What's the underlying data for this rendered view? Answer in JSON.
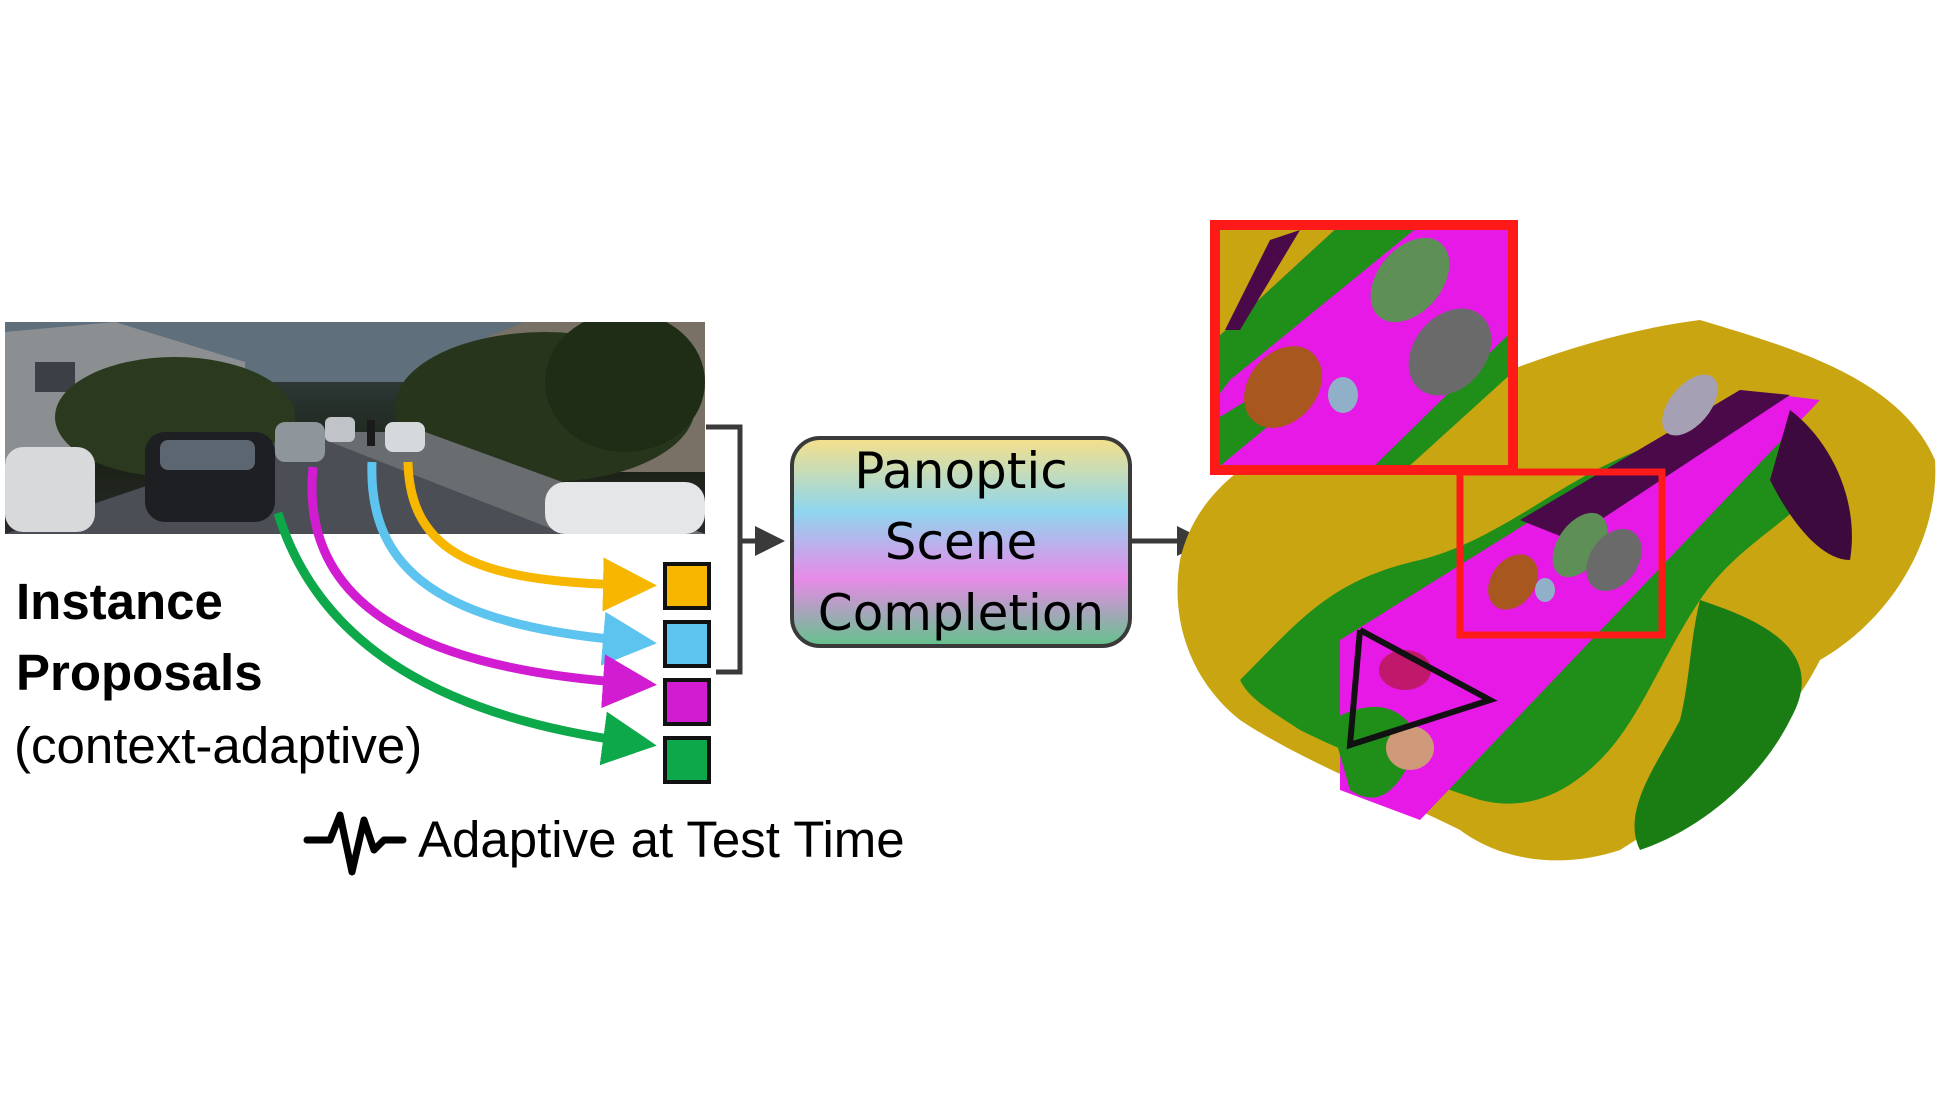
{
  "left_panel": {
    "title_line_1": "Instance",
    "title_line_2": "Proposals",
    "subtitle": "(context-adaptive)"
  },
  "proposal_colors": [
    "#f7b600",
    "#5cc4ef",
    "#d11cd1",
    "#0ca84a"
  ],
  "center_box": {
    "lines": [
      "Panoptic",
      "Scene",
      "Completion"
    ]
  },
  "legend": {
    "icon": "waveform-icon",
    "text": "Adaptive at Test Time"
  },
  "colors": {
    "highlight_frame": "#ff1a1a",
    "arrow": "#3a3a3a",
    "road": "#e619e6",
    "vegetation": "#1f8f1a",
    "terrain": "#c9a512",
    "sidewalk": "#4a0a4a"
  }
}
